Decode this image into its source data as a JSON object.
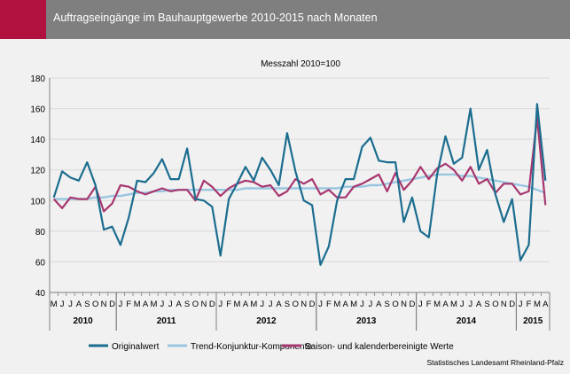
{
  "header": {
    "title": "Auftragseingänge im Bauhauptgewerbe 2010-2015 nach Monaten"
  },
  "source": "Statistisches Landesamt Rheinland-Pfalz",
  "colors": {
    "header": "#7f7f7f",
    "accent": "#b0113e",
    "original": "#1b6d8f",
    "trend": "#99c6e0",
    "saison": "#a7376f",
    "grid": "#d9d9d9",
    "background": "#f1f1f1"
  },
  "chart_data": {
    "type": "line",
    "title": "Messzahl 2010=100",
    "ylim": [
      40,
      180
    ],
    "yticks": [
      40,
      60,
      80,
      100,
      120,
      140,
      160,
      180
    ],
    "grid": true,
    "legend_position": "bottom",
    "x_months": [
      "M",
      "J",
      "J",
      "A",
      "S",
      "O",
      "N",
      "D",
      "J",
      "F",
      "M",
      "A",
      "M",
      "J",
      "J",
      "A",
      "S",
      "O",
      "N",
      "D",
      "J",
      "F",
      "M",
      "A",
      "M",
      "J",
      "J",
      "A",
      "S",
      "O",
      "N",
      "D",
      "J",
      "F",
      "M",
      "A",
      "M",
      "J",
      "J",
      "A",
      "S",
      "O",
      "N",
      "D",
      "J",
      "F",
      "M",
      "A",
      "M",
      "J",
      "J",
      "A",
      "S",
      "O",
      "N",
      "D",
      "J",
      "F",
      "M",
      "A"
    ],
    "years": [
      {
        "label": "2010",
        "start": 0,
        "count": 8
      },
      {
        "label": "2011",
        "start": 8,
        "count": 12
      },
      {
        "label": "2012",
        "start": 20,
        "count": 12
      },
      {
        "label": "2013",
        "start": 32,
        "count": 12
      },
      {
        "label": "2014",
        "start": 44,
        "count": 12
      },
      {
        "label": "2015",
        "start": 56,
        "count": 4
      }
    ],
    "series": [
      {
        "name": "Originalwert",
        "values": [
          102,
          119,
          115,
          113,
          125,
          110,
          81,
          83,
          71,
          89,
          113,
          112,
          118,
          127,
          114,
          114,
          134,
          101,
          100,
          96,
          64,
          101,
          111,
          122,
          113,
          128,
          120,
          110,
          144,
          119,
          100,
          97,
          58,
          70,
          100,
          114,
          114,
          135,
          141,
          126,
          125,
          125,
          86,
          102,
          80,
          76,
          117,
          142,
          124,
          128,
          160,
          120,
          133,
          104,
          86,
          101,
          61,
          71,
          163,
          113
        ]
      },
      {
        "name": "Trend-Konjunktur-Komponente",
        "values": [
          101,
          101,
          101,
          101,
          101,
          102,
          102,
          103,
          103,
          104,
          105,
          105,
          106,
          106,
          107,
          107,
          107,
          107,
          107,
          107,
          107,
          107,
          107,
          108,
          108,
          108,
          108,
          108,
          108,
          108,
          108,
          108,
          108,
          108,
          108,
          109,
          109,
          109,
          110,
          110,
          111,
          112,
          113,
          114,
          115,
          116,
          117,
          117,
          117,
          116,
          116,
          115,
          114,
          113,
          112,
          111,
          110,
          109,
          107,
          105
        ]
      },
      {
        "name": "Saison- und kalenderbereinigte Werte",
        "values": [
          101,
          95,
          102,
          101,
          101,
          109,
          93,
          98,
          110,
          109,
          106,
          104,
          106,
          108,
          106,
          107,
          107,
          100,
          113,
          109,
          103,
          108,
          111,
          113,
          112,
          109,
          110,
          103,
          106,
          114,
          111,
          114,
          104,
          107,
          102,
          102,
          109,
          111,
          114,
          117,
          106,
          118,
          107,
          113,
          122,
          114,
          121,
          124,
          120,
          113,
          122,
          111,
          114,
          105,
          111,
          111,
          104,
          106,
          154,
          97
        ]
      }
    ]
  }
}
